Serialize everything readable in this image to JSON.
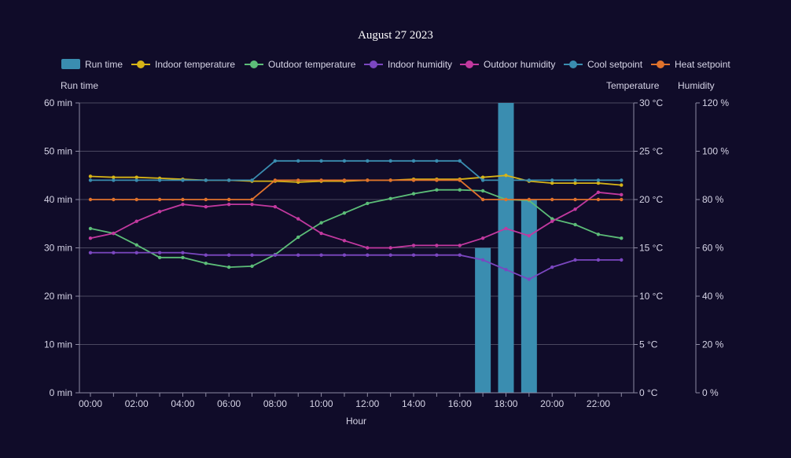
{
  "colors": {
    "background": "#100c29",
    "text": "#d6d4e6",
    "title": "#ffffff",
    "grid": "#4a4760",
    "axis": "#8d8aa3"
  },
  "chart_data": {
    "type": "bar+line",
    "title": "August 27 2023",
    "xlabel": "Hour",
    "x": [
      "00:00",
      "01:00",
      "02:00",
      "03:00",
      "04:00",
      "05:00",
      "06:00",
      "07:00",
      "08:00",
      "09:00",
      "10:00",
      "11:00",
      "12:00",
      "13:00",
      "14:00",
      "15:00",
      "16:00",
      "17:00",
      "18:00",
      "19:00",
      "20:00",
      "21:00",
      "22:00",
      "23:00"
    ],
    "x_tick_labels": [
      "00:00",
      "02:00",
      "04:00",
      "06:00",
      "08:00",
      "10:00",
      "12:00",
      "14:00",
      "16:00",
      "18:00",
      "20:00",
      "22:00"
    ],
    "legend_position": "top",
    "grid": true,
    "axes": {
      "runtime": {
        "title": "Run time",
        "position": "left",
        "range": [
          0,
          60
        ],
        "ticks": [
          "0 min",
          "10 min",
          "20 min",
          "30 min",
          "40 min",
          "50 min",
          "60 min"
        ]
      },
      "temperature": {
        "title": "Temperature",
        "position": "right",
        "range": [
          0,
          30
        ],
        "ticks": [
          "0 °C",
          "5 °C",
          "10 °C",
          "15 °C",
          "20 °C",
          "25 °C",
          "30 °C"
        ]
      },
      "humidity": {
        "title": "Humidity",
        "position": "right",
        "range": [
          0,
          120
        ],
        "ticks": [
          "0 %",
          "20 %",
          "40 %",
          "60 %",
          "80 %",
          "100 %",
          "120 %"
        ]
      }
    },
    "series": [
      {
        "name": "Run time",
        "type": "bar",
        "axis": "runtime",
        "color": "#3a8db0",
        "values": [
          0,
          0,
          0,
          0,
          0,
          0,
          0,
          0,
          0,
          0,
          0,
          0,
          0,
          0,
          0,
          0,
          0,
          30,
          60,
          40,
          0,
          0,
          0,
          0
        ]
      },
      {
        "name": "Indoor temperature",
        "type": "line",
        "axis": "temperature",
        "color": "#d7b417",
        "values": [
          22.4,
          22.3,
          22.3,
          22.2,
          22.1,
          22.0,
          22.0,
          21.9,
          21.9,
          21.8,
          21.9,
          21.9,
          22.0,
          22.0,
          22.1,
          22.1,
          22.1,
          22.3,
          22.5,
          21.9,
          21.7,
          21.7,
          21.7,
          21.5
        ]
      },
      {
        "name": "Outdoor temperature",
        "type": "line",
        "axis": "temperature",
        "color": "#5cbd78",
        "values": [
          17.0,
          16.5,
          15.3,
          14.0,
          14.0,
          13.4,
          13.0,
          13.1,
          14.3,
          16.1,
          17.6,
          18.6,
          19.6,
          20.1,
          20.6,
          21.0,
          21.0,
          20.9,
          20.0,
          19.9,
          18.0,
          17.4,
          16.4,
          16.0
        ]
      },
      {
        "name": "Indoor humidity",
        "type": "line",
        "axis": "humidity",
        "color": "#7b47c0",
        "values": [
          58,
          58,
          58,
          58,
          58,
          57,
          57,
          57,
          57,
          57,
          57,
          57,
          57,
          57,
          57,
          57,
          57,
          55,
          51,
          47,
          52,
          55,
          55,
          55
        ]
      },
      {
        "name": "Outdoor humidity",
        "type": "line",
        "axis": "humidity",
        "color": "#c2399f",
        "values": [
          64,
          66,
          71,
          75,
          78,
          77,
          78,
          78,
          77,
          72,
          66,
          63,
          60,
          60,
          61,
          61,
          61,
          64,
          68,
          65,
          71,
          76,
          83,
          82
        ]
      },
      {
        "name": "Cool setpoint",
        "type": "line",
        "axis": "temperature",
        "color": "#3a8db0",
        "values": [
          22,
          22,
          22,
          22,
          22,
          22,
          22,
          22,
          24,
          24,
          24,
          24,
          24,
          24,
          24,
          24,
          24,
          22,
          22,
          22,
          22,
          22,
          22,
          22
        ]
      },
      {
        "name": "Heat setpoint",
        "type": "line",
        "axis": "temperature",
        "color": "#e0722c",
        "values": [
          20,
          20,
          20,
          20,
          20,
          20,
          20,
          20,
          22,
          22,
          22,
          22,
          22,
          22,
          22,
          22,
          22,
          20,
          20,
          20,
          20,
          20,
          20,
          20
        ]
      }
    ]
  }
}
